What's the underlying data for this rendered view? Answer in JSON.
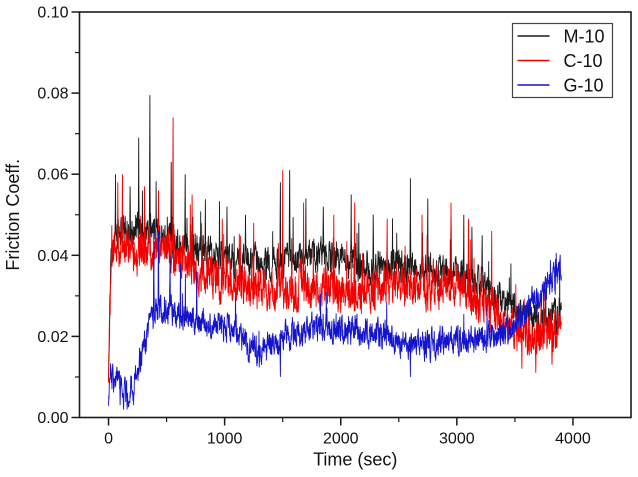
{
  "figure": {
    "background": "#ffffff",
    "frame_color": "#1a1a1a"
  },
  "chart_data": {
    "type": "line",
    "title": "",
    "xlabel": "Time (sec)",
    "ylabel": "Friction Coeff.",
    "xlim": [
      -250,
      4500
    ],
    "ylim": [
      0,
      0.1
    ],
    "x_major_ticks": [
      0,
      1000,
      2000,
      3000,
      4000
    ],
    "x_minor_ticks": [
      500,
      1500,
      2500,
      3500
    ],
    "y_major_ticks": [
      0.0,
      0.02,
      0.04,
      0.06,
      0.08,
      0.1
    ],
    "y_minor_ticks": [
      0.01,
      0.03,
      0.05,
      0.07,
      0.09
    ],
    "y_tick_decimals": 2,
    "grid": false,
    "legend_position": "top-right",
    "sample_interval_sec": 2,
    "t_start": 0,
    "t_end": 3900,
    "series": [
      {
        "name": "M-10",
        "color": "#1a1a1a",
        "noise": 0.0032,
        "spike_prob": 0.03,
        "spike_max": 0.011,
        "trend": [
          [
            0,
            0.012
          ],
          [
            20,
            0.038
          ],
          [
            60,
            0.045
          ],
          [
            150,
            0.046
          ],
          [
            300,
            0.046
          ],
          [
            450,
            0.045
          ],
          [
            600,
            0.043
          ],
          [
            800,
            0.041
          ],
          [
            1000,
            0.039
          ],
          [
            1200,
            0.038
          ],
          [
            1400,
            0.038
          ],
          [
            1600,
            0.039
          ],
          [
            1800,
            0.04
          ],
          [
            2000,
            0.039
          ],
          [
            2200,
            0.037
          ],
          [
            2400,
            0.037
          ],
          [
            2600,
            0.038
          ],
          [
            2800,
            0.036
          ],
          [
            3000,
            0.035
          ],
          [
            3200,
            0.033
          ],
          [
            3350,
            0.03
          ],
          [
            3500,
            0.027
          ],
          [
            3650,
            0.025
          ],
          [
            3800,
            0.025
          ],
          [
            3900,
            0.026
          ]
        ],
        "spikes": [
          [
            60,
            0.06
          ],
          [
            185,
            0.057
          ],
          [
            260,
            0.069
          ],
          [
            355,
            0.0795
          ],
          [
            540,
            0.063
          ],
          [
            660,
            0.06
          ],
          [
            1020,
            0.052
          ],
          [
            1180,
            0.05
          ],
          [
            1480,
            0.058
          ],
          [
            1560,
            0.061
          ],
          [
            1700,
            0.054
          ],
          [
            1850,
            0.052
          ],
          [
            2090,
            0.055
          ],
          [
            2280,
            0.05
          ],
          [
            2600,
            0.059
          ],
          [
            2750,
            0.054
          ],
          [
            2950,
            0.052
          ],
          [
            3060,
            0.05
          ],
          [
            3130,
            0.047
          ]
        ]
      },
      {
        "name": "C-10",
        "color": "#f40000",
        "noise": 0.0042,
        "spike_prob": 0.035,
        "spike_max": 0.012,
        "trend": [
          [
            0,
            0.01
          ],
          [
            20,
            0.036
          ],
          [
            60,
            0.042
          ],
          [
            200,
            0.04
          ],
          [
            350,
            0.041
          ],
          [
            500,
            0.042
          ],
          [
            650,
            0.038
          ],
          [
            800,
            0.035
          ],
          [
            1000,
            0.033
          ],
          [
            1300,
            0.032
          ],
          [
            1600,
            0.032
          ],
          [
            1900,
            0.031
          ],
          [
            2200,
            0.031
          ],
          [
            2500,
            0.032
          ],
          [
            2800,
            0.033
          ],
          [
            3000,
            0.032
          ],
          [
            3150,
            0.03
          ],
          [
            3300,
            0.026
          ],
          [
            3450,
            0.022
          ],
          [
            3600,
            0.02
          ],
          [
            3750,
            0.02
          ],
          [
            3900,
            0.022
          ]
        ],
        "spikes": [
          [
            80,
            0.058
          ],
          [
            120,
            0.06
          ],
          [
            310,
            0.057
          ],
          [
            430,
            0.056
          ],
          [
            555,
            0.074
          ],
          [
            720,
            0.055
          ],
          [
            980,
            0.049
          ],
          [
            1250,
            0.048
          ],
          [
            1500,
            0.061
          ],
          [
            1680,
            0.053
          ],
          [
            1940,
            0.05
          ],
          [
            2120,
            0.053
          ],
          [
            2400,
            0.049
          ],
          [
            2700,
            0.05
          ],
          [
            2950,
            0.053
          ],
          [
            3100,
            0.049
          ],
          [
            3300,
            0.046
          ],
          [
            3560,
            0.012
          ],
          [
            3680,
            0.011
          ],
          [
            3820,
            0.013
          ]
        ]
      },
      {
        "name": "G-10",
        "color": "#1414cc",
        "noise": 0.0028,
        "spike_prob": 0.02,
        "spike_max": 0.008,
        "trend": [
          [
            0,
            0.001
          ],
          [
            15,
            0.01
          ],
          [
            80,
            0.009
          ],
          [
            140,
            0.006
          ],
          [
            200,
            0.007
          ],
          [
            250,
            0.011
          ],
          [
            300,
            0.017
          ],
          [
            360,
            0.023
          ],
          [
            420,
            0.027
          ],
          [
            500,
            0.027
          ],
          [
            600,
            0.025
          ],
          [
            750,
            0.024
          ],
          [
            900,
            0.023
          ],
          [
            1050,
            0.022
          ],
          [
            1200,
            0.018
          ],
          [
            1300,
            0.016
          ],
          [
            1450,
            0.019
          ],
          [
            1600,
            0.021
          ],
          [
            1750,
            0.022
          ],
          [
            1950,
            0.022
          ],
          [
            2150,
            0.021
          ],
          [
            2350,
            0.02
          ],
          [
            2550,
            0.018
          ],
          [
            2750,
            0.018
          ],
          [
            2950,
            0.019
          ],
          [
            3150,
            0.019
          ],
          [
            3300,
            0.02
          ],
          [
            3450,
            0.022
          ],
          [
            3550,
            0.025
          ],
          [
            3650,
            0.028
          ],
          [
            3750,
            0.031
          ],
          [
            3850,
            0.034
          ],
          [
            3900,
            0.036
          ]
        ],
        "spikes": [
          [
            100,
            0.003
          ],
          [
            160,
            0.002
          ],
          [
            215,
            0.003
          ],
          [
            390,
            0.048
          ],
          [
            430,
            0.046
          ],
          [
            530,
            0.04
          ],
          [
            620,
            0.038
          ],
          [
            760,
            0.036
          ],
          [
            1480,
            0.01
          ],
          [
            2600,
            0.01
          ],
          [
            3870,
            0.037
          ]
        ]
      }
    ]
  }
}
